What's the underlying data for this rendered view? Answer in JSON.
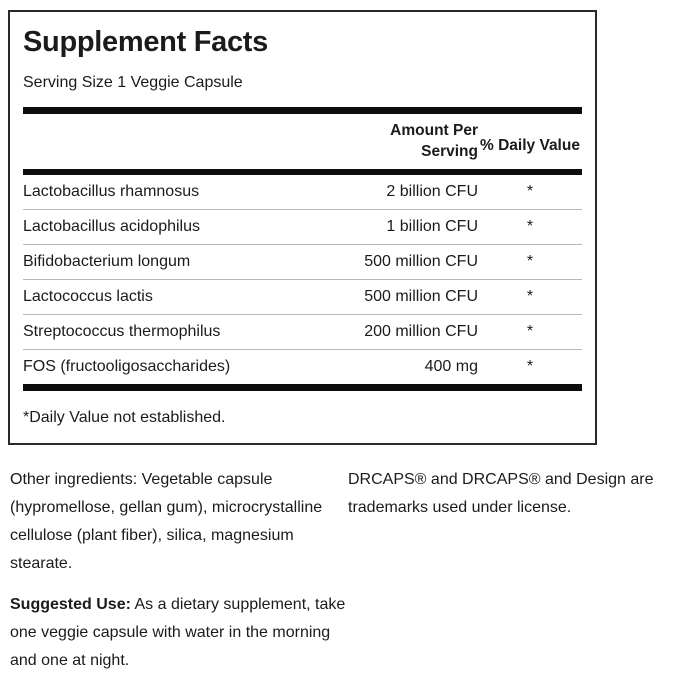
{
  "panel": {
    "title": "Supplement Facts",
    "serving_size": "Serving Size 1 Veggie Capsule",
    "columns": {
      "amount": "Amount Per Serving",
      "daily_value": "% Daily Value"
    },
    "rows": [
      {
        "name": "Lactobacillus rhamnosus",
        "amount": "2 billion CFU",
        "daily_value": "*"
      },
      {
        "name": "Lactobacillus acidophilus",
        "amount": "1 billion CFU",
        "daily_value": "*"
      },
      {
        "name": "Bifidobacterium longum",
        "amount": "500 million CFU",
        "daily_value": "*"
      },
      {
        "name": "Lactococcus lactis",
        "amount": "500 million CFU",
        "daily_value": "*"
      },
      {
        "name": "Streptococcus thermophilus",
        "amount": "200 million CFU",
        "daily_value": "*"
      },
      {
        "name": "FOS (fructooligosaccharides)",
        "amount": "400 mg",
        "daily_value": "*"
      }
    ],
    "footnote": "*Daily Value not established."
  },
  "other_ingredients": {
    "text": "Other ingredients: Vegetable capsule (hypromellose, gellan gum), microcrystalline cellulose (plant fiber), silica, magnesium stearate."
  },
  "trademark": {
    "text": "DRCAPS® and DRCAPS® and Design are trademarks used under license."
  },
  "suggested_use": {
    "label": "Suggested Use:",
    "text": "As a dietary supplement, take one veggie capsule with water in the morning and one at night."
  },
  "colors": {
    "text": "#1b1b1b",
    "divider_thick": "#0d0d0d",
    "divider_thin": "#b9b9b9",
    "panel_border": "#2a2a2a",
    "background": "#ffffff"
  }
}
